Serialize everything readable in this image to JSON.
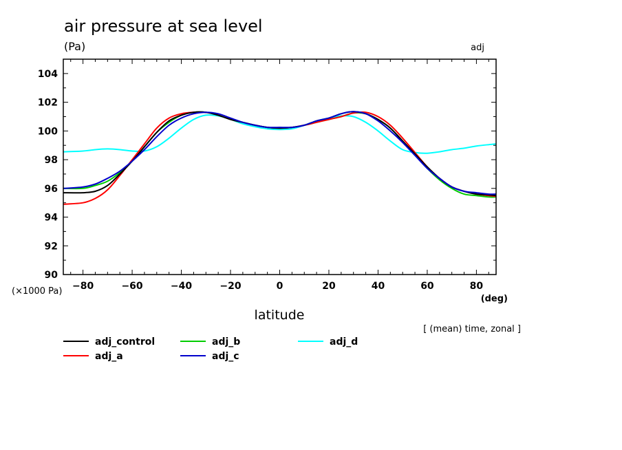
{
  "chart_data": {
    "type": "line",
    "title": "air pressure at sea level",
    "units": "(Pa)",
    "corner_label": "adj",
    "xlabel": "latitude",
    "xunit": "(deg)",
    "yscale_label": "(×1000 Pa)",
    "note": "[ (mean) time, zonal ]",
    "xlim": [
      -88,
      88
    ],
    "ylim": [
      90,
      105
    ],
    "xticks": [
      -80,
      -60,
      -40,
      -20,
      0,
      20,
      40,
      60,
      80
    ],
    "xtick_labels": [
      "−80",
      "−60",
      "−40",
      "−20",
      "0",
      "20",
      "40",
      "60",
      "80"
    ],
    "yticks": [
      90,
      92,
      94,
      96,
      98,
      100,
      102,
      104
    ],
    "ytick_labels": [
      "90",
      "92",
      "94",
      "96",
      "98",
      "100",
      "102",
      "104"
    ],
    "legend_position": "below",
    "x": [
      -88,
      -80,
      -75,
      -70,
      -65,
      -60,
      -55,
      -50,
      -45,
      -40,
      -35,
      -30,
      -25,
      -20,
      -15,
      -10,
      -5,
      0,
      5,
      10,
      15,
      20,
      25,
      30,
      35,
      40,
      45,
      50,
      55,
      60,
      65,
      70,
      75,
      80,
      85,
      88
    ],
    "series": [
      {
        "name": "adj_control",
        "color": "#000000",
        "values": [
          95.7,
          95.7,
          95.8,
          96.2,
          97.0,
          97.9,
          98.9,
          99.9,
          100.7,
          101.1,
          101.3,
          101.3,
          101.1,
          100.8,
          100.6,
          100.4,
          100.25,
          100.2,
          100.25,
          100.4,
          100.7,
          100.9,
          101.2,
          101.35,
          101.2,
          100.8,
          100.2,
          99.3,
          98.4,
          97.5,
          96.7,
          96.1,
          95.8,
          95.6,
          95.55,
          95.5
        ]
      },
      {
        "name": "adj_a",
        "color": "#ff0000",
        "values": [
          94.9,
          95.0,
          95.3,
          95.9,
          96.9,
          98.0,
          99.1,
          100.2,
          100.9,
          101.2,
          101.3,
          101.3,
          101.1,
          100.8,
          100.6,
          100.4,
          100.25,
          100.2,
          100.25,
          100.4,
          100.6,
          100.8,
          101.0,
          101.25,
          101.3,
          101.0,
          100.4,
          99.5,
          98.5,
          97.5,
          96.7,
          96.1,
          95.8,
          95.6,
          95.5,
          95.45
        ]
      },
      {
        "name": "adj_b",
        "color": "#00cc00",
        "values": [
          96.0,
          96.0,
          96.2,
          96.5,
          97.1,
          97.9,
          98.9,
          99.9,
          100.6,
          101.1,
          101.3,
          101.3,
          101.1,
          100.8,
          100.6,
          100.4,
          100.25,
          100.2,
          100.25,
          100.4,
          100.6,
          100.8,
          101.0,
          101.25,
          101.2,
          100.8,
          100.2,
          99.3,
          98.4,
          97.4,
          96.6,
          96.0,
          95.6,
          95.5,
          95.4,
          95.4
        ]
      },
      {
        "name": "adj_c",
        "color": "#0000cc",
        "values": [
          96.0,
          96.1,
          96.3,
          96.7,
          97.2,
          97.9,
          98.7,
          99.6,
          100.4,
          100.9,
          101.2,
          101.3,
          101.2,
          100.9,
          100.6,
          100.4,
          100.25,
          100.25,
          100.25,
          100.4,
          100.7,
          100.9,
          101.2,
          101.35,
          101.2,
          100.7,
          100.0,
          99.2,
          98.3,
          97.4,
          96.7,
          96.1,
          95.8,
          95.7,
          95.6,
          95.6
        ]
      },
      {
        "name": "adj_d",
        "color": "#00ffff",
        "values": [
          98.55,
          98.6,
          98.7,
          98.75,
          98.7,
          98.6,
          98.6,
          98.9,
          99.5,
          100.2,
          100.8,
          101.1,
          101.05,
          100.8,
          100.5,
          100.3,
          100.15,
          100.1,
          100.15,
          100.4,
          100.7,
          100.9,
          101.05,
          101.0,
          100.6,
          100.0,
          99.3,
          98.7,
          98.5,
          98.45,
          98.55,
          98.7,
          98.8,
          98.95,
          99.05,
          99.1
        ]
      }
    ]
  }
}
